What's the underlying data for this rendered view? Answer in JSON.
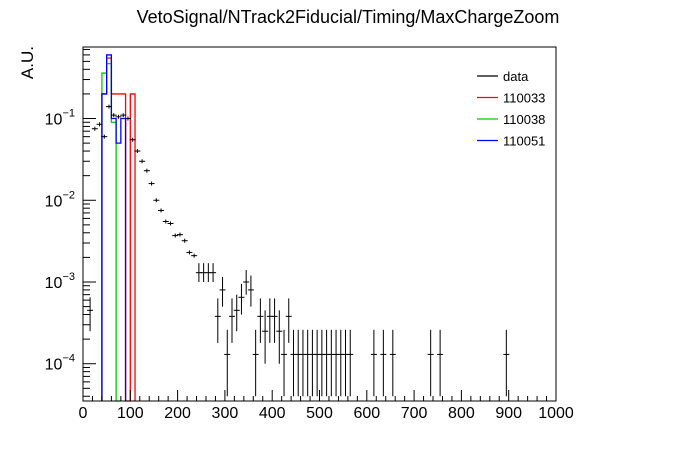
{
  "chart_data": {
    "type": "histogram",
    "title": "VetoSignal/NTrack2Fiducial/Timing/MaxChargeZoom",
    "xlabel": "",
    "ylabel": "A.U.",
    "xlim": [
      0,
      1000
    ],
    "ylim": [
      3.5e-05,
      0.75
    ],
    "y_scale": "log",
    "grid": false,
    "legend_position": "top-right",
    "x_ticks": [
      "0",
      "100",
      "200",
      "300",
      "400",
      "500",
      "600",
      "700",
      "800",
      "900",
      "1000"
    ],
    "y_ticks": [
      {
        "base": "10",
        "exp": "−1",
        "value": 0.1
      },
      {
        "base": "10",
        "exp": "−2",
        "value": 0.01
      },
      {
        "base": "10",
        "exp": "−3",
        "value": 0.001
      },
      {
        "base": "10",
        "exp": "−4",
        "value": 0.0001
      }
    ],
    "legend": [
      {
        "label": "data",
        "color": "#000000"
      },
      {
        "label": "110033",
        "color": "#ff0000"
      },
      {
        "label": "110038",
        "color": "#00cc00"
      },
      {
        "label": "110051",
        "color": "#0000ff"
      }
    ],
    "data_points": [
      {
        "x": 15,
        "y": 0.00045,
        "elo": 0.0002,
        "ehi": 0.0002
      },
      {
        "x": 25,
        "y": 0.075
      },
      {
        "x": 35,
        "y": 0.085
      },
      {
        "x": 45,
        "y": 0.06
      },
      {
        "x": 55,
        "y": 0.14
      },
      {
        "x": 65,
        "y": 0.11
      },
      {
        "x": 75,
        "y": 0.105
      },
      {
        "x": 85,
        "y": 0.11
      },
      {
        "x": 95,
        "y": 0.1
      },
      {
        "x": 105,
        "y": 0.055
      },
      {
        "x": 115,
        "y": 0.04
      },
      {
        "x": 125,
        "y": 0.03
      },
      {
        "x": 135,
        "y": 0.023
      },
      {
        "x": 145,
        "y": 0.016
      },
      {
        "x": 155,
        "y": 0.01
      },
      {
        "x": 165,
        "y": 0.0075
      },
      {
        "x": 175,
        "y": 0.0055
      },
      {
        "x": 185,
        "y": 0.0052
      },
      {
        "x": 195,
        "y": 0.0037
      },
      {
        "x": 205,
        "y": 0.0038
      },
      {
        "x": 215,
        "y": 0.0032
      },
      {
        "x": 225,
        "y": 0.0023
      },
      {
        "x": 235,
        "y": 0.0021
      },
      {
        "x": 245,
        "y": 0.0013,
        "elo": 0.0003,
        "ehi": 0.0004
      },
      {
        "x": 255,
        "y": 0.0013,
        "elo": 0.0003,
        "ehi": 0.0004
      },
      {
        "x": 265,
        "y": 0.0013,
        "elo": 0.0003,
        "ehi": 0.0004
      },
      {
        "x": 275,
        "y": 0.0013,
        "elo": 0.0003,
        "ehi": 0.0004
      },
      {
        "x": 285,
        "y": 0.00038,
        "elo": 0.0002,
        "ehi": 0.00025
      },
      {
        "x": 295,
        "y": 0.0008,
        "elo": 0.0003,
        "ehi": 0.00035
      },
      {
        "x": 305,
        "y": 0.00013,
        "elo": 9e-05,
        "ehi": 0.00013
      },
      {
        "x": 315,
        "y": 0.00038,
        "elo": 0.0002,
        "ehi": 0.00025
      },
      {
        "x": 325,
        "y": 0.00045,
        "elo": 0.0002,
        "ehi": 0.00025
      },
      {
        "x": 335,
        "y": 0.00065,
        "elo": 0.00025,
        "ehi": 0.0003
      },
      {
        "x": 345,
        "y": 0.001,
        "elo": 0.0003,
        "ehi": 0.0004
      },
      {
        "x": 355,
        "y": 0.0008,
        "elo": 0.0003,
        "ehi": 0.0004
      },
      {
        "x": 365,
        "y": 0.00013,
        "elo": 9e-05,
        "ehi": 0.00013
      },
      {
        "x": 375,
        "y": 0.00038,
        "elo": 0.0002,
        "ehi": 0.00025
      },
      {
        "x": 385,
        "y": 0.00025,
        "elo": 0.00015,
        "ehi": 0.0002
      },
      {
        "x": 395,
        "y": 0.00038,
        "elo": 0.0002,
        "ehi": 0.00025
      },
      {
        "x": 405,
        "y": 0.00038,
        "elo": 0.0002,
        "ehi": 0.00025
      },
      {
        "x": 415,
        "y": 0.00025,
        "elo": 0.00015,
        "ehi": 0.0002
      },
      {
        "x": 425,
        "y": 0.00013,
        "elo": 9e-05,
        "ehi": 0.00013
      },
      {
        "x": 435,
        "y": 0.00038,
        "elo": 0.0002,
        "ehi": 0.00025
      },
      {
        "x": 445,
        "y": 0.00013,
        "elo": 9e-05,
        "ehi": 0.00013
      },
      {
        "x": 455,
        "y": 0.00013,
        "elo": 9e-05,
        "ehi": 0.00013
      },
      {
        "x": 465,
        "y": 0.00013,
        "elo": 9e-05,
        "ehi": 0.00013
      },
      {
        "x": 475,
        "y": 0.00013,
        "elo": 9e-05,
        "ehi": 0.00013
      },
      {
        "x": 485,
        "y": 0.00013,
        "elo": 9e-05,
        "ehi": 0.00013
      },
      {
        "x": 495,
        "y": 0.00013,
        "elo": 9e-05,
        "ehi": 0.00013
      },
      {
        "x": 505,
        "y": 0.00013,
        "elo": 9e-05,
        "ehi": 0.00013
      },
      {
        "x": 515,
        "y": 0.00013,
        "elo": 9e-05,
        "ehi": 0.00013
      },
      {
        "x": 525,
        "y": 0.00013,
        "elo": 9e-05,
        "ehi": 0.00013
      },
      {
        "x": 535,
        "y": 0.00013,
        "elo": 9e-05,
        "ehi": 0.00013
      },
      {
        "x": 545,
        "y": 0.00013,
        "elo": 9e-05,
        "ehi": 0.00013
      },
      {
        "x": 555,
        "y": 0.00013,
        "elo": 9e-05,
        "ehi": 0.00013
      },
      {
        "x": 565,
        "y": 0.00013,
        "elo": 9e-05,
        "ehi": 0.00013
      },
      {
        "x": 615,
        "y": 0.00013,
        "elo": 9e-05,
        "ehi": 0.00013
      },
      {
        "x": 635,
        "y": 0.00013,
        "elo": 9e-05,
        "ehi": 0.00013
      },
      {
        "x": 655,
        "y": 0.00013,
        "elo": 9e-05,
        "ehi": 0.00013
      },
      {
        "x": 735,
        "y": 0.00013,
        "elo": 9e-05,
        "ehi": 0.00013
      },
      {
        "x": 755,
        "y": 0.00013,
        "elo": 9e-05,
        "ehi": 0.00013
      },
      {
        "x": 895,
        "y": 0.00013,
        "elo": 9e-05,
        "ehi": 0.00013
      }
    ],
    "series": [
      {
        "name": "110033",
        "color": "#ff0000",
        "bins": [
          {
            "x0": 40,
            "x1": 50,
            "y": 0.2
          },
          {
            "x0": 50,
            "x1": 60,
            "y": 0.55
          },
          {
            "x0": 60,
            "x1": 70,
            "y": 0.2
          },
          {
            "x0": 70,
            "x1": 80,
            "y": 0.2
          },
          {
            "x0": 80,
            "x1": 90,
            "y": 0.2
          },
          {
            "x0": 90,
            "x1": 100,
            "y": 0.0
          },
          {
            "x0": 100,
            "x1": 110,
            "y": 0.2
          }
        ]
      },
      {
        "name": "110038",
        "color": "#00cc00",
        "bins": [
          {
            "x0": 40,
            "x1": 50,
            "y": 0.36
          },
          {
            "x0": 50,
            "x1": 60,
            "y": 0.47
          },
          {
            "x0": 60,
            "x1": 70,
            "y": 0.09
          },
          {
            "x0": 70,
            "x1": 80,
            "y": 0.0
          }
        ]
      },
      {
        "name": "110051",
        "color": "#0000ff",
        "bins": [
          {
            "x0": 40,
            "x1": 50,
            "y": 0.2
          },
          {
            "x0": 50,
            "x1": 60,
            "y": 0.6
          },
          {
            "x0": 60,
            "x1": 70,
            "y": 0.1
          },
          {
            "x0": 70,
            "x1": 80,
            "y": 0.05
          },
          {
            "x0": 80,
            "x1": 90,
            "y": 0.1
          }
        ]
      }
    ]
  }
}
